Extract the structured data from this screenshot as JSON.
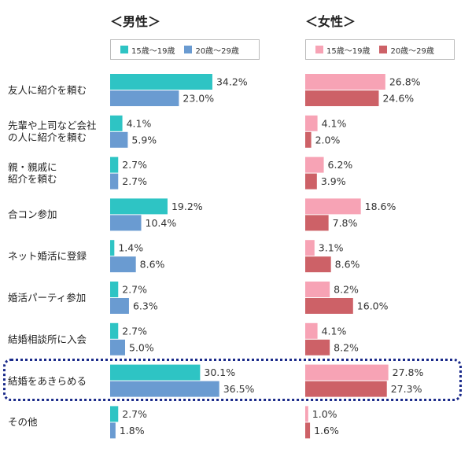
{
  "panels": [
    {
      "title": "＜男性＞",
      "legend": [
        "15歳〜19歳",
        "20歳〜29歳"
      ],
      "colors": [
        "#2ec4c4",
        "#6a9bd1"
      ]
    },
    {
      "title": "＜女性＞",
      "legend": [
        "15歳〜19歳",
        "20歳〜29歳"
      ],
      "colors": [
        "#f7a3b5",
        "#cd6167"
      ]
    }
  ],
  "categories": [
    [
      "友人に紹介を頼む"
    ],
    [
      "先輩や上司など会社",
      "の人に紹介を頼む"
    ],
    [
      "親・親戚に",
      "紹介を頼む"
    ],
    [
      "合コン参加"
    ],
    [
      "ネット婚活に登録"
    ],
    [
      "婚活パーティ参加"
    ],
    [
      "結婚相談所に入会"
    ],
    [
      "結婚をあきらめる"
    ],
    [
      "その他"
    ]
  ],
  "chart_data": [
    {
      "type": "bar",
      "title": "＜男性＞",
      "categories": [
        "友人に紹介を頼む",
        "先輩や上司など会社の人に紹介を頼む",
        "親・親戚に紹介を頼む",
        "合コン参加",
        "ネット婚活に登録",
        "婚活パーティ参加",
        "結婚相談所に入会",
        "結婚をあきらめる",
        "その他"
      ],
      "series": [
        {
          "name": "15歳〜19歳",
          "values": [
            34.2,
            4.1,
            2.7,
            19.2,
            1.4,
            2.7,
            2.7,
            30.1,
            2.7
          ]
        },
        {
          "name": "20歳〜29歳",
          "values": [
            23.0,
            5.9,
            2.7,
            10.4,
            8.6,
            6.3,
            5.0,
            36.5,
            1.8
          ]
        }
      ],
      "orientation": "horizontal",
      "value_suffix": "%"
    },
    {
      "type": "bar",
      "title": "＜女性＞",
      "categories": [
        "友人に紹介を頼む",
        "先輩や上司など会社の人に紹介を頼む",
        "親・親戚に紹介を頼む",
        "合コン参加",
        "ネット婚活に登録",
        "婚活パーティ参加",
        "結婚相談所に入会",
        "結婚をあきらめる",
        "その他"
      ],
      "series": [
        {
          "name": "15歳〜19歳",
          "values": [
            26.8,
            4.1,
            6.2,
            18.6,
            3.1,
            8.2,
            4.1,
            27.8,
            1.0
          ]
        },
        {
          "name": "20歳〜29歳",
          "values": [
            24.6,
            2.0,
            3.9,
            7.8,
            8.6,
            16.0,
            8.2,
            27.3,
            1.6
          ]
        }
      ],
      "orientation": "horizontal",
      "value_suffix": "%"
    }
  ],
  "highlighted_category": "結婚をあきらめる"
}
